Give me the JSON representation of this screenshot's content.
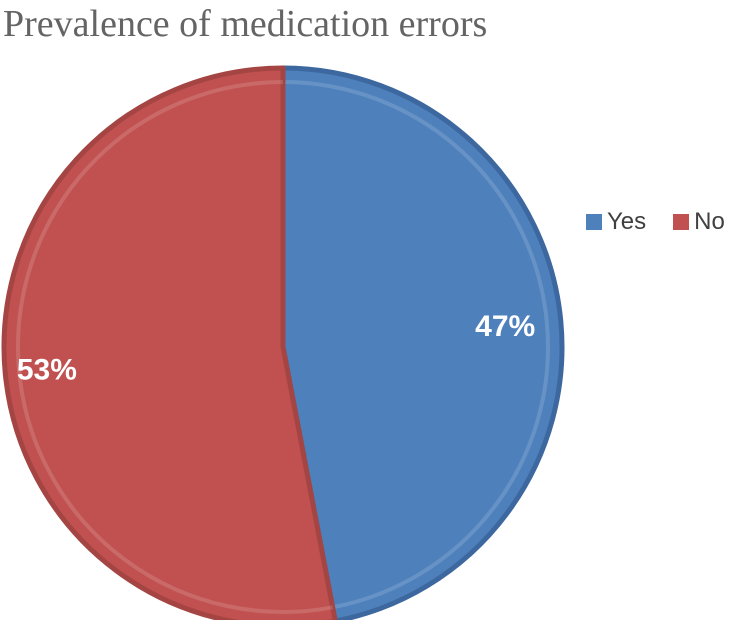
{
  "chart_data": {
    "type": "pie",
    "title": "Prevalence of medication errors",
    "labels": [
      "Yes",
      "No"
    ],
    "values": [
      47,
      53
    ],
    "data_labels": [
      "47%",
      "53%"
    ],
    "colors": [
      "#4e80bc",
      "#c05150"
    ],
    "edge_colors": [
      "#3d689f",
      "#a54543"
    ],
    "data_label_color": "#ffffff",
    "legend_position": "right",
    "start_angle_deg": 0,
    "direction": "clockwise",
    "background_color": "#ffffff",
    "title_color": "#646464",
    "legend_text_color": "#404040"
  }
}
